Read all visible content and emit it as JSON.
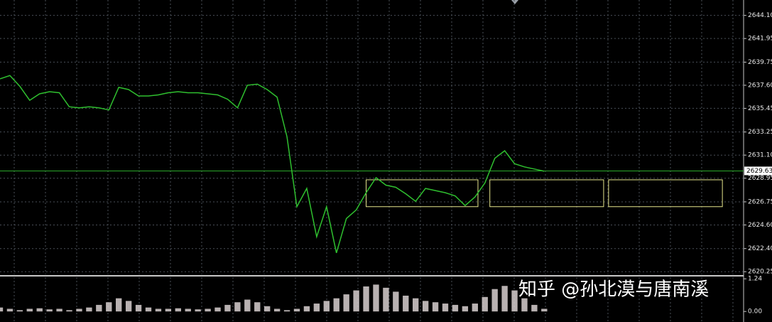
{
  "chart_data": [
    {
      "type": "line",
      "color": "#2fbf2f",
      "x": [
        0,
        1,
        2,
        3,
        4,
        5,
        6,
        7,
        8,
        9,
        10,
        11,
        12,
        13,
        14,
        15,
        16,
        17,
        18,
        19,
        20,
        21,
        22,
        23,
        24,
        25,
        26,
        27,
        28,
        29,
        30,
        31,
        32,
        33,
        34,
        35,
        36,
        37,
        38,
        39,
        40,
        41,
        42,
        43,
        44,
        45,
        46,
        47,
        48,
        49,
        50,
        51,
        52,
        53,
        54,
        55
      ],
      "values": [
        2638.2,
        2638.5,
        2637.5,
        2636.2,
        2636.8,
        2637.0,
        2636.9,
        2635.6,
        2635.5,
        2635.6,
        2635.5,
        2635.3,
        2637.4,
        2637.2,
        2636.6,
        2636.6,
        2636.7,
        2636.9,
        2637.0,
        2636.9,
        2636.9,
        2636.8,
        2636.7,
        2636.3,
        2635.5,
        2637.6,
        2637.7,
        2637.2,
        2636.5,
        2632.8,
        2626.3,
        2628.0,
        2623.5,
        2626.3,
        2622.0,
        2625.2,
        2626.0,
        2627.6,
        2629.0,
        2628.3,
        2628.1,
        2627.5,
        2626.8,
        2628.0,
        2627.8,
        2627.6,
        2627.3,
        2626.4,
        2627.2,
        2628.5,
        2630.8,
        2631.5,
        2630.3,
        2630.0,
        2629.8,
        2629.6
      ],
      "xlim": [
        0,
        75
      ],
      "ylim": [
        2620.0,
        2645.4
      ],
      "yticks": [
        {
          "value": 2644.1,
          "label": "2644.10"
        },
        2641.95,
        2639.75,
        {
          "value": 2637.6,
          "label": "2637.60"
        },
        2635.45,
        2633.25,
        {
          "value": 2631.1,
          "label": "2631.10"
        },
        2628.95,
        2626.75,
        {
          "value": 2624.6,
          "label": "2624.60"
        },
        {
          "value": 2622.4,
          "label": "2622.40"
        },
        2620.25
      ],
      "grid": true,
      "last_price": 2629.63,
      "zones": [
        {
          "x": [
            37,
            48.3
          ],
          "y": [
            2626.3,
            2628.8
          ],
          "color": "#e6e68c"
        },
        {
          "x": [
            49.5,
            61
          ],
          "y": [
            2626.3,
            2628.8
          ],
          "color": "#e6e68c"
        },
        {
          "x": [
            61.5,
            73
          ],
          "y": [
            2626.3,
            2628.8
          ],
          "color": "#e6e68c"
        }
      ]
    },
    {
      "type": "bar",
      "color": "#d8d0d0",
      "x": [
        0,
        1,
        2,
        3,
        4,
        5,
        6,
        7,
        8,
        9,
        10,
        11,
        12,
        13,
        14,
        15,
        16,
        17,
        18,
        19,
        20,
        21,
        22,
        23,
        24,
        25,
        26,
        27,
        28,
        29,
        30,
        31,
        32,
        33,
        34,
        35,
        36,
        37,
        38,
        39,
        40,
        41,
        42,
        43,
        44,
        45,
        46,
        47,
        48,
        49,
        50,
        51,
        52,
        53,
        54,
        55
      ],
      "values": [
        0.15,
        0.1,
        0.05,
        0.1,
        0.12,
        0.08,
        0.1,
        0.05,
        0.1,
        0.15,
        0.25,
        0.35,
        0.5,
        0.4,
        0.25,
        0.15,
        0.1,
        0.1,
        0.12,
        0.1,
        0.08,
        0.1,
        0.15,
        0.25,
        0.35,
        0.45,
        0.35,
        0.2,
        0.1,
        0.05,
        0.1,
        0.2,
        0.3,
        0.4,
        0.5,
        0.65,
        0.8,
        0.95,
        1.02,
        0.9,
        0.75,
        0.6,
        0.5,
        0.4,
        0.35,
        0.3,
        0.25,
        0.2,
        0.3,
        0.55,
        0.85,
        0.97,
        0.8,
        0.5,
        0.25,
        0.1
      ],
      "xlim": [
        0,
        75
      ],
      "ylim": [
        -0.4,
        1.3
      ],
      "yticks": [
        1.24,
        {
          "value": 0,
          "label": "0.00"
        }
      ]
    }
  ],
  "watermark": "知乎 @孙北漠与唐南溪"
}
